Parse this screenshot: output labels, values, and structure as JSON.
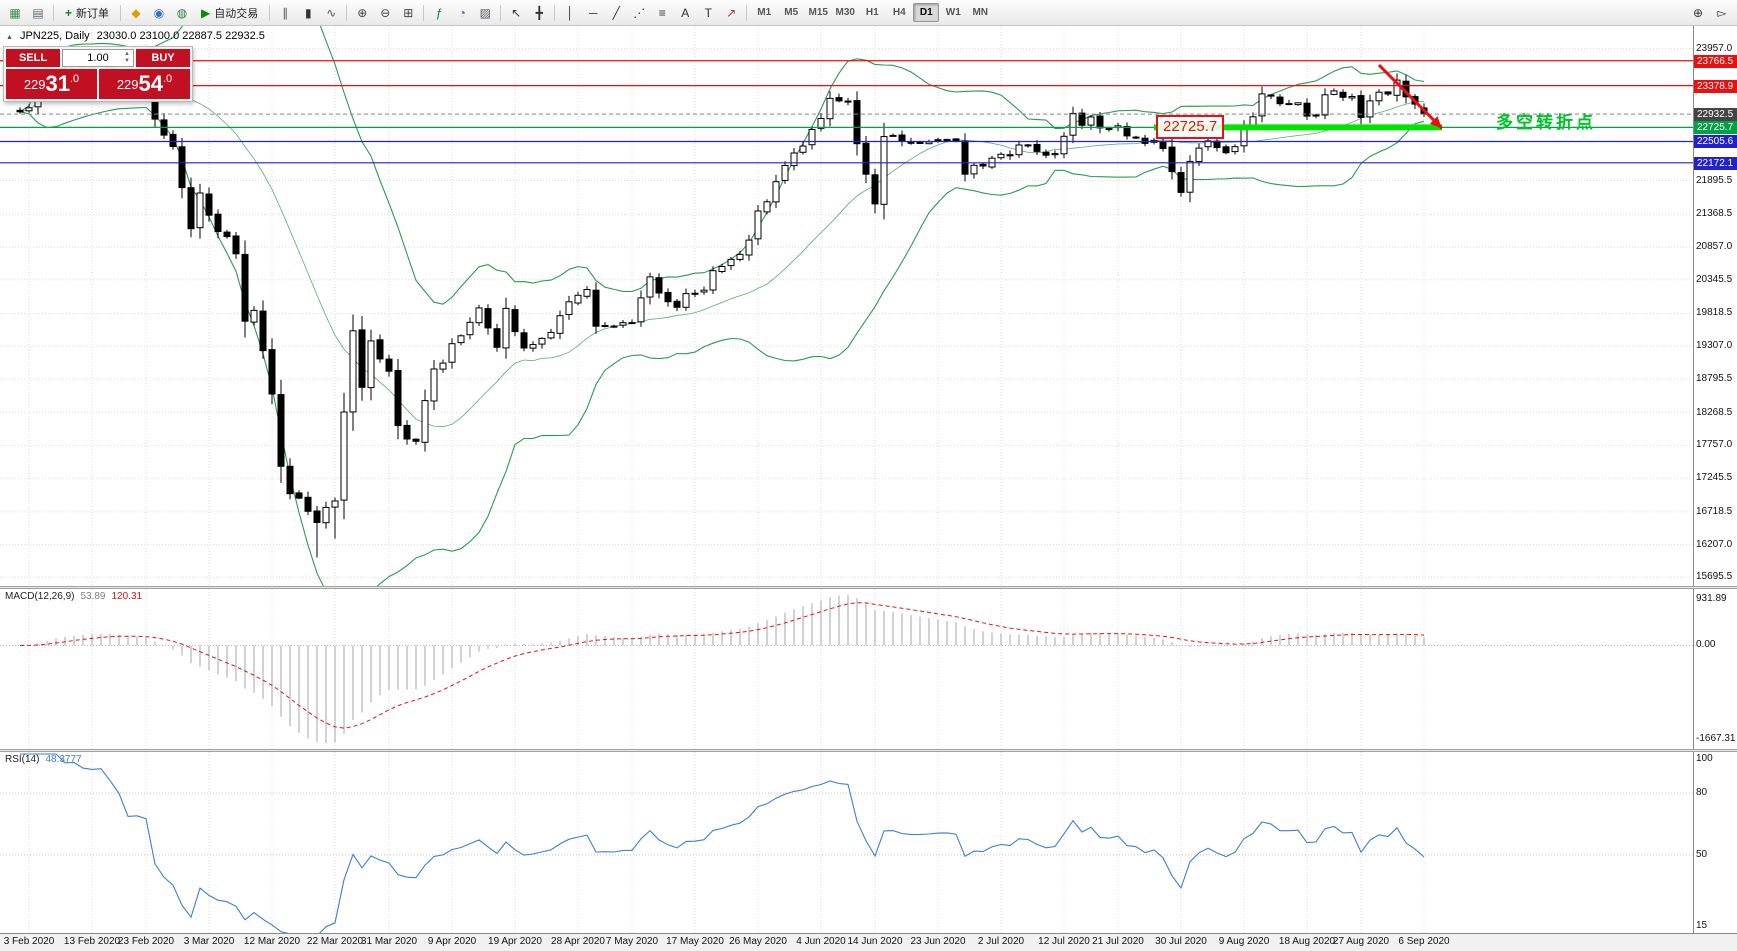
{
  "toolbar": {
    "items": [
      {
        "name": "new-chart",
        "icon": "chart-plus"
      },
      {
        "name": "profiles",
        "icon": "layout"
      },
      {
        "sep": true
      },
      {
        "name": "new-order",
        "icon": "plus-green",
        "label": "新订单"
      },
      {
        "sep": true
      },
      {
        "name": "market-watch",
        "icon": "diamond"
      },
      {
        "name": "data-window",
        "icon": "people"
      },
      {
        "name": "navigator",
        "icon": "globe"
      },
      {
        "name": "auto-trading",
        "icon": "play-green",
        "label": "自动交易"
      },
      {
        "sep": true
      },
      {
        "name": "bar-chart-type",
        "icon": "bars"
      },
      {
        "name": "candle-chart-type",
        "icon": "candles"
      },
      {
        "name": "line-chart-type",
        "icon": "line"
      },
      {
        "sep": true
      },
      {
        "name": "zoom-in",
        "icon": "zoom-in"
      },
      {
        "name": "zoom-out",
        "icon": "zoom-out"
      },
      {
        "name": "tile-windows",
        "icon": "grid"
      },
      {
        "sep": true
      },
      {
        "name": "indicators",
        "icon": "fx"
      },
      {
        "name": "periods",
        "icon": "clock"
      },
      {
        "name": "templates",
        "icon": "template"
      },
      {
        "sep": true
      },
      {
        "name": "cursor",
        "icon": "cursor"
      },
      {
        "name": "crosshair",
        "icon": "crosshair"
      },
      {
        "sep": true
      },
      {
        "name": "vertical-line",
        "icon": "vline"
      },
      {
        "name": "horizontal-line",
        "icon": "hline"
      },
      {
        "name": "trendline",
        "icon": "trend"
      },
      {
        "name": "equidistant-channel",
        "icon": "channel"
      },
      {
        "name": "fibonacci",
        "icon": "fibo"
      },
      {
        "name": "text",
        "icon": "text-a"
      },
      {
        "name": "text-label",
        "icon": "text-t"
      },
      {
        "name": "arrow-objects",
        "icon": "arrow-obj"
      },
      {
        "sep": true
      }
    ],
    "timeframes": [
      "M1",
      "M5",
      "M15",
      "M30",
      "H1",
      "H4",
      "D1",
      "W1",
      "MN"
    ],
    "active_timeframe": "D1",
    "items_right": [
      {
        "name": "search",
        "icon": "magnifier"
      },
      {
        "name": "pointer-mode",
        "icon": "cursor2"
      }
    ]
  },
  "chart": {
    "symbol_title": "JPN225, Daily",
    "ohlc_text": "23030.0 23100.0 22887.5 22932.5",
    "trade_panel": {
      "sell_label": "SELL",
      "buy_label": "BUY",
      "volume": "1.00",
      "sell_price": {
        "pre": "229",
        "big": "31",
        "frac": ".0"
      },
      "buy_price": {
        "pre": "229",
        "big": "54",
        "frac": ".0"
      }
    },
    "price_axis": {
      "min": 15560,
      "max": 24310,
      "ticks": [
        "23957.0",
        "21895.5",
        "21368.5",
        "20857.0",
        "20345.5",
        "19818.5",
        "19307.0",
        "18795.5",
        "18268.5",
        "17757.0",
        "17245.5",
        "16718.5",
        "16207.0",
        "15695.5"
      ]
    },
    "hlines": [
      {
        "price": 23766.5,
        "label": "23766.5",
        "color": "#e81010"
      },
      {
        "price": 23378.9,
        "label": "23378.9",
        "color": "#e81010"
      },
      {
        "price": 22725.7,
        "label": "22725.7",
        "color": "#00a243"
      },
      {
        "price": 22505.6,
        "label": "22505.6",
        "color": "#2222cc"
      },
      {
        "price": 22172.1,
        "label": "22172.1",
        "color": "#2222cc"
      }
    ],
    "current_price": {
      "value": 22932.5,
      "label": "22932.5",
      "color": "#454545"
    },
    "annotations": {
      "price_box": {
        "text": "22725.7",
        "color": "#e81010",
        "at_idx": 126,
        "at_price": 22725.7
      },
      "cn_note": {
        "text": "多空转折点",
        "color": "#00c32a",
        "at_idx": 164,
        "at_price": 22880
      },
      "support_band": {
        "price": 22725.7,
        "from_idx": 126,
        "to_idx": 158,
        "color": "#00e400"
      },
      "trend_arrow": {
        "from_idx": 151,
        "from_price": 23700,
        "to_idx": 158,
        "to_price": 22710,
        "color": "#e81010"
      }
    }
  },
  "chart_data": {
    "type": "candlestick",
    "symbol": "JPN225",
    "timeframe": "Daily",
    "num_bars": 157,
    "last_ohlc": {
      "open": 23030.0,
      "high": 23100.0,
      "low": 22887.5,
      "close": 22932.5
    },
    "close_anchors": [
      [
        0,
        22970
      ],
      [
        2,
        23330
      ],
      [
        4,
        23700
      ],
      [
        7,
        23660
      ],
      [
        9,
        23690
      ],
      [
        12,
        23400
      ],
      [
        14,
        23386
      ],
      [
        16,
        22605
      ],
      [
        17,
        22426
      ],
      [
        19,
        21143
      ],
      [
        20,
        21700
      ],
      [
        22,
        21100
      ],
      [
        24,
        20750
      ],
      [
        25,
        19699
      ],
      [
        26,
        19867
      ],
      [
        28,
        18560
      ],
      [
        29,
        17431
      ],
      [
        30,
        17002
      ],
      [
        32,
        16727
      ],
      [
        33,
        16553
      ],
      [
        35,
        16888
      ],
      [
        37,
        19547
      ],
      [
        38,
        18665
      ],
      [
        39,
        19389
      ],
      [
        41,
        18917
      ],
      [
        42,
        18065
      ],
      [
        44,
        17820
      ],
      [
        46,
        18950
      ],
      [
        48,
        19346
      ],
      [
        51,
        19905
      ],
      [
        53,
        19290
      ],
      [
        54,
        19897
      ],
      [
        56,
        19280
      ],
      [
        58,
        19429
      ],
      [
        60,
        19783
      ],
      [
        63,
        20193
      ],
      [
        64,
        19619
      ],
      [
        68,
        19674
      ],
      [
        70,
        20390
      ],
      [
        73,
        19914
      ],
      [
        75,
        20133
      ],
      [
        78,
        20552
      ],
      [
        80,
        20741
      ],
      [
        82,
        21419
      ],
      [
        84,
        21877
      ],
      [
        86,
        22326
      ],
      [
        89,
        22864
      ],
      [
        90,
        23178
      ],
      [
        92,
        23125
      ],
      [
        93,
        22472
      ],
      [
        95,
        21531
      ],
      [
        96,
        22582
      ],
      [
        99,
        22478
      ],
      [
        102,
        22534
      ],
      [
        104,
        22512
      ],
      [
        105,
        21995
      ],
      [
        107,
        22122
      ],
      [
        109,
        22306
      ],
      [
        112,
        22438
      ],
      [
        114,
        22291
      ],
      [
        116,
        22587
      ],
      [
        117,
        22945
      ],
      [
        120,
        22717
      ],
      [
        122,
        22751
      ],
      [
        127,
        22397
      ],
      [
        129,
        21710
      ],
      [
        130,
        22195
      ],
      [
        132,
        22514
      ],
      [
        134,
        22330
      ],
      [
        136,
        22750
      ],
      [
        138,
        23249
      ],
      [
        140,
        23096
      ],
      [
        142,
        23110
      ],
      [
        144,
        22920
      ],
      [
        146,
        23296
      ],
      [
        148,
        23208
      ],
      [
        149,
        22882
      ],
      [
        150,
        23140
      ],
      [
        152,
        23247
      ],
      [
        153,
        23465
      ],
      [
        154,
        23205
      ],
      [
        155,
        23089
      ],
      [
        156,
        22932.5
      ]
    ],
    "high_anchors": [
      [
        4,
        23766
      ],
      [
        153,
        23570
      ]
    ],
    "low_anchors": [
      [
        33,
        16005
      ],
      [
        35,
        16300
      ]
    ],
    "x_labels": [
      "3 Feb 2020",
      "13 Feb 2020",
      "23 Feb 2020",
      "3 Mar 2020",
      "12 Mar 2020",
      "22 Mar 2020",
      "31 Mar 2020",
      "9 Apr 2020",
      "19 Apr 2020",
      "28 Apr 2020",
      "7 May 2020",
      "17 May 2020",
      "26 May 2020",
      "4 Jun 2020",
      "14 Jun 2020",
      "23 Jun 2020",
      "2 Jul 2020",
      "12 Jul 2020",
      "21 Jul 2020",
      "30 Jul 2020",
      "9 Aug 2020",
      "18 Aug 2020",
      "27 Aug 2020",
      "6 Sep 2020"
    ],
    "overlays": {
      "bollinger": {
        "period": 20,
        "deviation": 2,
        "color": "#2c9a52"
      }
    },
    "indicators": [
      {
        "name": "MACD",
        "label": "MACD(12,26,9)",
        "value_main": "53.89",
        "value_signal": "120.31",
        "axis_labels": [
          "931.89",
          "0.00",
          "-1667.31"
        ],
        "histogram_color": "#a6a6a6",
        "signal_color": "#e81010"
      },
      {
        "name": "RSI",
        "label": "RSI(14)",
        "value": "48.3777",
        "axis_labels": [
          "100",
          "80",
          "50",
          "15"
        ],
        "levels": [
          80,
          50
        ],
        "line_color": "#3b7fd4"
      }
    ]
  },
  "colors": {
    "bull": "#ffffff",
    "bear": "#000000",
    "bollinger": "#2c9a52",
    "macd_hist": "#a6a6a6",
    "macd_signal": "#e81010",
    "rsi_line": "#3b7fd4",
    "band_green": "#00e400",
    "note_green": "#00c32a",
    "trade_red": "#c01021",
    "current_price_label": "#454545"
  }
}
